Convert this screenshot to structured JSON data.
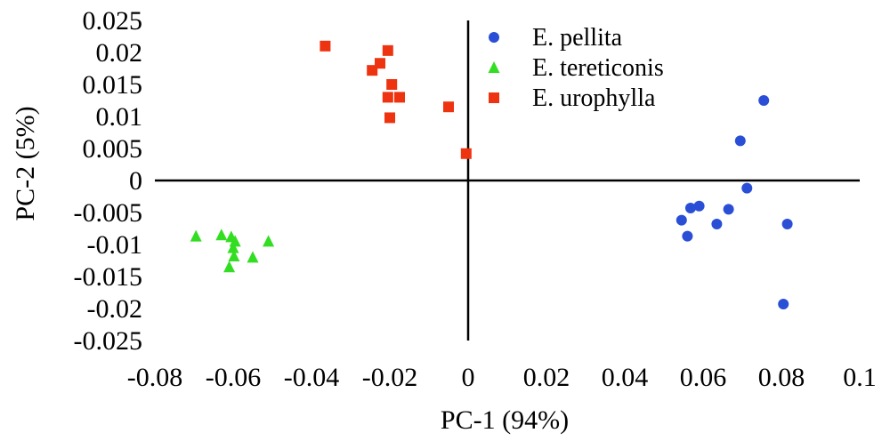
{
  "chart_data": {
    "type": "scatter",
    "title": "",
    "xlabel": "PC-1 (94%)",
    "ylabel": "PC-2 (5%)",
    "xlim": [
      -0.08,
      0.1
    ],
    "ylim": [
      -0.025,
      0.025
    ],
    "x_ticks": [
      "-0.08",
      "-0.06",
      "-0.04",
      "-0.02",
      "0",
      "0.02",
      "0.04",
      "0.06",
      "0.08",
      "0.1"
    ],
    "y_ticks": [
      "0.025",
      "0.02",
      "0.015",
      "0.01",
      "0.005",
      "0",
      "-0.005",
      "-0.01",
      "-0.015",
      "-0.02",
      "-0.025"
    ],
    "grid": false,
    "legend_position": "top-right",
    "series": [
      {
        "name": "E. pellita",
        "marker": "circle",
        "color": "#2a4fd6",
        "points": [
          {
            "x": 0.0755,
            "y": 0.0125
          },
          {
            "x": 0.0695,
            "y": 0.0062
          },
          {
            "x": 0.0712,
            "y": -0.0012
          },
          {
            "x": 0.0568,
            "y": -0.0043
          },
          {
            "x": 0.0545,
            "y": -0.0062
          },
          {
            "x": 0.056,
            "y": -0.0087
          },
          {
            "x": 0.059,
            "y": -0.004
          },
          {
            "x": 0.0635,
            "y": -0.0068
          },
          {
            "x": 0.0665,
            "y": -0.0045
          },
          {
            "x": 0.0815,
            "y": -0.0068
          },
          {
            "x": 0.0805,
            "y": -0.0193
          }
        ]
      },
      {
        "name": "E. tereticonis",
        "marker": "triangle",
        "color": "#33dd22",
        "points": [
          {
            "x": -0.0695,
            "y": -0.0087
          },
          {
            "x": -0.063,
            "y": -0.0085
          },
          {
            "x": -0.0605,
            "y": -0.0088
          },
          {
            "x": -0.0595,
            "y": -0.0095
          },
          {
            "x": -0.06,
            "y": -0.0105
          },
          {
            "x": -0.0598,
            "y": -0.0118
          },
          {
            "x": -0.061,
            "y": -0.0135
          },
          {
            "x": -0.055,
            "y": -0.012
          },
          {
            "x": -0.051,
            "y": -0.0095
          }
        ]
      },
      {
        "name": "E. urophylla",
        "marker": "square",
        "color": "#ee3311",
        "points": [
          {
            "x": -0.0365,
            "y": 0.021
          },
          {
            "x": -0.0205,
            "y": 0.0203
          },
          {
            "x": -0.0225,
            "y": 0.0183
          },
          {
            "x": -0.0245,
            "y": 0.0172
          },
          {
            "x": -0.0195,
            "y": 0.015
          },
          {
            "x": -0.0205,
            "y": 0.013
          },
          {
            "x": -0.0175,
            "y": 0.013
          },
          {
            "x": -0.02,
            "y": 0.0098
          },
          {
            "x": -0.005,
            "y": 0.0115
          },
          {
            "x": -0.0005,
            "y": 0.0042
          }
        ]
      }
    ]
  }
}
